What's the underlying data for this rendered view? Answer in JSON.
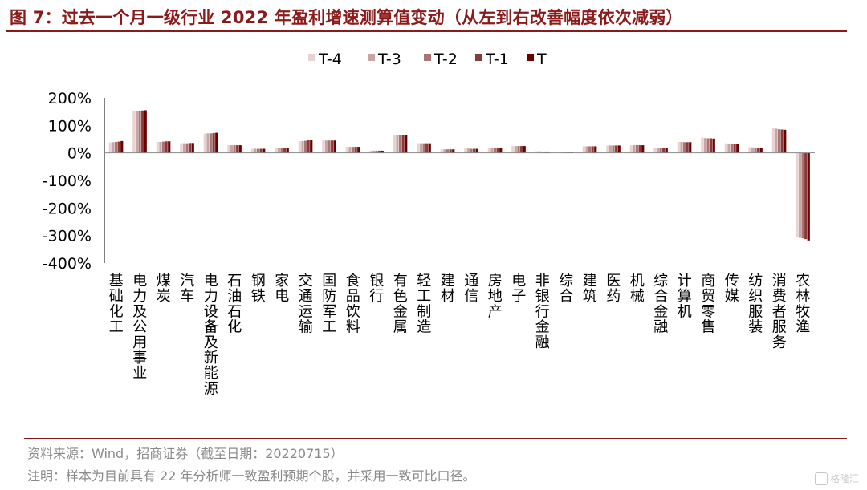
{
  "title": "图 7：过去一个月一级行业 2022 年盈利增速测算值变动（从左到右改善幅度依次减弱）",
  "source": "资料来源：Wind，招商证券（截至日期：20220715）",
  "note": "注明：样本为目前具有 22 年分析师一致盈利预期个股，并采用一致可比口径。",
  "watermark": "格隆汇",
  "colors": {
    "title": "#8B1A1A",
    "rule": "#8B1A1A",
    "text": "#8a8a8a",
    "series": [
      "#E8D2D2",
      "#C9A4A4",
      "#A87474",
      "#8B3A3A",
      "#6B0000"
    ]
  },
  "chart_data": {
    "type": "bar",
    "categories": [
      "基础化工",
      "电力及公用事业",
      "煤炭",
      "汽车",
      "电力设备及新能源",
      "石油石化",
      "钢铁",
      "家电",
      "交通运输",
      "国防军工",
      "食品饮料",
      "银行",
      "有色金属",
      "轻工制造",
      "建材",
      "通信",
      "房地产",
      "电子",
      "非银行金融",
      "综合",
      "建筑",
      "医药",
      "机械",
      "综合金融",
      "计算机",
      "商贸零售",
      "传媒",
      "纺织服装",
      "消费者服务",
      "农林牧渔"
    ],
    "series": [
      {
        "name": "T-4",
        "values": [
          38,
          152,
          40,
          35,
          70,
          28,
          15,
          18,
          42,
          45,
          22,
          8,
          66,
          35,
          13,
          16,
          18,
          25,
          6,
          3,
          24,
          27,
          28,
          18,
          40,
          55,
          35,
          21,
          90,
          -305
        ]
      },
      {
        "name": "T-3",
        "values": [
          39,
          152,
          40,
          35,
          71,
          28,
          15,
          18,
          43,
          45,
          22,
          8,
          66,
          35,
          13,
          16,
          18,
          25,
          6,
          3,
          24,
          27,
          28,
          18,
          40,
          54,
          34,
          20,
          88,
          -308
        ]
      },
      {
        "name": "T-2",
        "values": [
          40,
          153,
          41,
          35,
          71,
          28,
          15,
          18,
          44,
          45,
          22,
          8,
          66,
          35,
          13,
          15,
          17,
          25,
          5,
          3,
          24,
          27,
          28,
          18,
          39,
          53,
          33,
          19,
          86,
          -310
        ]
      },
      {
        "name": "T-1",
        "values": [
          41,
          154,
          42,
          36,
          72,
          28,
          15,
          18,
          46,
          45,
          22,
          8,
          66,
          35,
          13,
          15,
          17,
          25,
          5,
          3,
          24,
          27,
          28,
          18,
          39,
          53,
          33,
          18,
          85,
          -313
        ]
      },
      {
        "name": "T",
        "values": [
          43,
          155,
          42,
          36,
          73,
          28,
          15,
          18,
          47,
          45,
          22,
          8,
          66,
          35,
          13,
          15,
          17,
          25,
          5,
          3,
          24,
          27,
          28,
          18,
          39,
          52,
          33,
          18,
          84,
          -318
        ]
      }
    ],
    "yticks": [
      "200%",
      "100%",
      "0%",
      "-100%",
      "-200%",
      "-300%",
      "-400%"
    ],
    "ylim": [
      -400,
      200
    ],
    "ytick_values": [
      200,
      100,
      0,
      -100,
      -200,
      -300,
      -400
    ],
    "grid": false,
    "legend_position": "top-center"
  }
}
